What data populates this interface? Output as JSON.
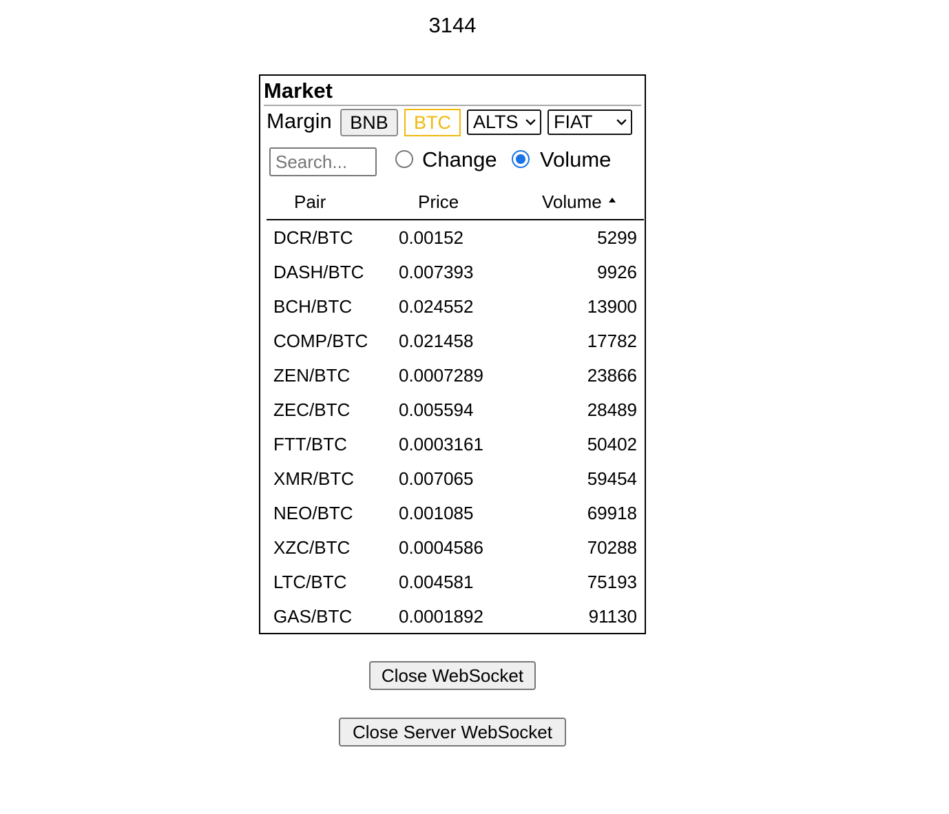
{
  "counter": "3144",
  "market": {
    "title": "Market",
    "margin_label": "Margin",
    "buttons": {
      "bnb": "BNB",
      "btc": "BTC"
    },
    "selects": {
      "alts": "ALTS",
      "fiat": "FIAT"
    },
    "search_placeholder": "Search...",
    "sort_options": {
      "change": "Change",
      "volume": "Volume",
      "selected": "Volume"
    },
    "columns": {
      "pair": "Pair",
      "price": "Price",
      "volume": "Volume"
    },
    "sort_direction_icon": "sort-ascending-icon",
    "rows": [
      {
        "pair": "DCR/BTC",
        "price": "0.00152",
        "volume": "5299"
      },
      {
        "pair": "DASH/BTC",
        "price": "0.007393",
        "volume": "9926"
      },
      {
        "pair": "BCH/BTC",
        "price": "0.024552",
        "volume": "13900"
      },
      {
        "pair": "COMP/BTC",
        "price": "0.021458",
        "volume": "17782"
      },
      {
        "pair": "ZEN/BTC",
        "price": "0.0007289",
        "volume": "23866"
      },
      {
        "pair": "ZEC/BTC",
        "price": "0.005594",
        "volume": "28489"
      },
      {
        "pair": "FTT/BTC",
        "price": "0.0003161",
        "volume": "50402"
      },
      {
        "pair": "XMR/BTC",
        "price": "0.007065",
        "volume": "59454"
      },
      {
        "pair": "NEO/BTC",
        "price": "0.001085",
        "volume": "69918"
      },
      {
        "pair": "XZC/BTC",
        "price": "0.0004586",
        "volume": "70288"
      },
      {
        "pair": "LTC/BTC",
        "price": "0.004581",
        "volume": "75193"
      },
      {
        "pair": "GAS/BTC",
        "price": "0.0001892",
        "volume": "91130"
      }
    ]
  },
  "actions": {
    "close_websocket": "Close WebSocket",
    "close_server_websocket": "Close Server WebSocket"
  },
  "colors": {
    "btc_active": "#f0b90b",
    "radio_selected": "#1a73e8"
  }
}
